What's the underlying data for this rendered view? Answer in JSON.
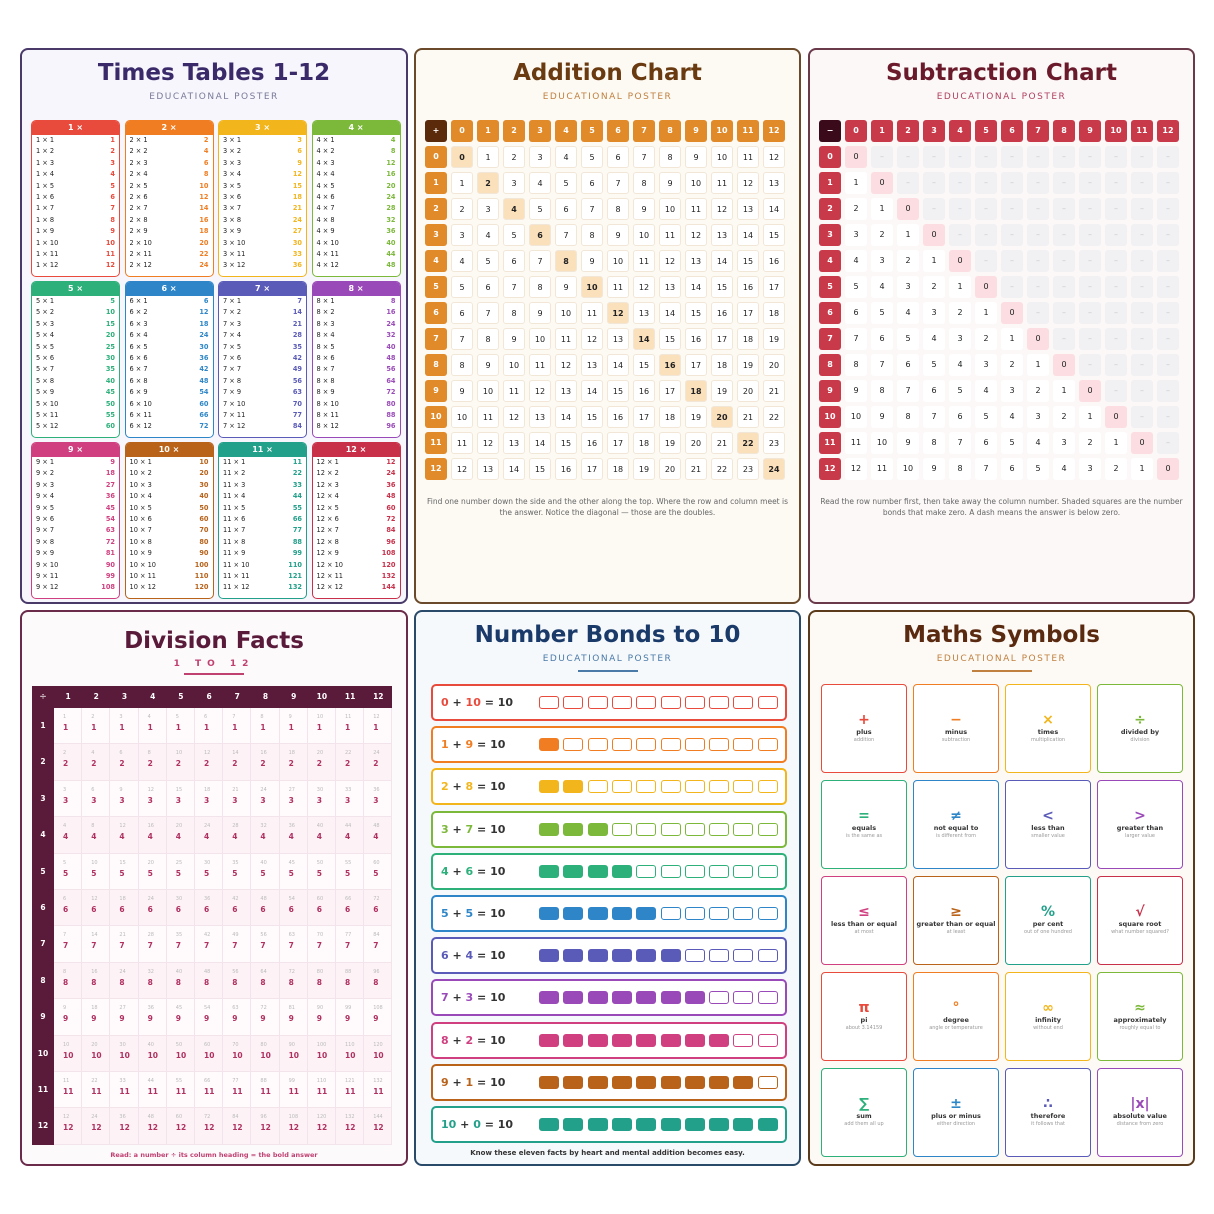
{
  "times": {
    "title": "Times Tables 1-12",
    "subtitle": "EDUCATIONAL POSTER",
    "colors": [
      "#e84a3c",
      "#f07d22",
      "#f2b51c",
      "#7cb83a",
      "#2db07a",
      "#2e86c8",
      "#5a5ab8",
      "#9a4ab8",
      "#d04080",
      "#b8621a",
      "#22a08a",
      "#c8304a"
    ]
  },
  "addition": {
    "title": "Addition Chart",
    "subtitle": "EDUCATIONAL POSTER",
    "corner": "+",
    "footer": "Find one number down the side and the other along the top. Where the row and column meet is the answer. Notice the diagonal — those are the doubles."
  },
  "subtraction": {
    "title": "Subtraction Chart",
    "subtitle": "EDUCATIONAL POSTER",
    "corner": "−",
    "dash": "–",
    "footer": "Read the row number first, then take away the column number. Shaded squares are the number bonds that make zero. A dash means the answer is below zero."
  },
  "division": {
    "title": "Division Facts",
    "subtitle": "1 TO 12",
    "corner": "÷",
    "footer": "Read: a number ÷ its column heading = the bold answer"
  },
  "bonds": {
    "title": "Number Bonds to 10",
    "subtitle": "EDUCATIONAL POSTER",
    "footer": "Know these eleven facts by heart and mental addition becomes easy.",
    "rows": [
      {
        "a": "0",
        "b": "10",
        "sum": "10",
        "color": "#e84a3c"
      },
      {
        "a": "1",
        "b": "9",
        "sum": "10",
        "color": "#f07d22"
      },
      {
        "a": "2",
        "b": "8",
        "sum": "10",
        "color": "#f2b51c"
      },
      {
        "a": "3",
        "b": "7",
        "sum": "10",
        "color": "#7cb83a"
      },
      {
        "a": "4",
        "b": "6",
        "sum": "10",
        "color": "#2db07a"
      },
      {
        "a": "5",
        "b": "5",
        "sum": "10",
        "color": "#2e86c8"
      },
      {
        "a": "6",
        "b": "4",
        "sum": "10",
        "color": "#5a5ab8"
      },
      {
        "a": "7",
        "b": "3",
        "sum": "10",
        "color": "#9a4ab8"
      },
      {
        "a": "8",
        "b": "2",
        "sum": "10",
        "color": "#d04080"
      },
      {
        "a": "9",
        "b": "1",
        "sum": "10",
        "color": "#b8621a"
      },
      {
        "a": "10",
        "b": "0",
        "sum": "10",
        "color": "#22a08a"
      }
    ]
  },
  "symbols": {
    "title": "Maths Symbols",
    "subtitle": "EDUCATIONAL POSTER",
    "cards": [
      {
        "sym": "+",
        "name": "plus",
        "desc": "addition",
        "color": "#e84a3c"
      },
      {
        "sym": "−",
        "name": "minus",
        "desc": "subtraction",
        "color": "#f07d22"
      },
      {
        "sym": "×",
        "name": "times",
        "desc": "multiplication",
        "color": "#f2b51c"
      },
      {
        "sym": "÷",
        "name": "divided by",
        "desc": "division",
        "color": "#7cb83a"
      },
      {
        "sym": "=",
        "name": "equals",
        "desc": "is the same as",
        "color": "#2db07a"
      },
      {
        "sym": "≠",
        "name": "not equal to",
        "desc": "is different from",
        "color": "#2e86c8"
      },
      {
        "sym": "<",
        "name": "less than",
        "desc": "smaller value",
        "color": "#5a5ab8"
      },
      {
        "sym": ">",
        "name": "greater than",
        "desc": "larger value",
        "color": "#9a4ab8"
      },
      {
        "sym": "≤",
        "name": "less than or equal",
        "desc": "at most",
        "color": "#d04080"
      },
      {
        "sym": "≥",
        "name": "greater than or equal",
        "desc": "at least",
        "color": "#b8621a"
      },
      {
        "sym": "%",
        "name": "per cent",
        "desc": "out of one hundred",
        "color": "#22a08a"
      },
      {
        "sym": "√",
        "name": "square root",
        "desc": "what number squared?",
        "color": "#c8304a"
      },
      {
        "sym": "π",
        "name": "pi",
        "desc": "about 3.14159",
        "color": "#e84a3c"
      },
      {
        "sym": "°",
        "name": "degree",
        "desc": "angle or temperature",
        "color": "#f07d22"
      },
      {
        "sym": "∞",
        "name": "infinity",
        "desc": "without end",
        "color": "#f2b51c"
      },
      {
        "sym": "≈",
        "name": "approximately",
        "desc": "roughly equal to",
        "color": "#7cb83a"
      },
      {
        "sym": "∑",
        "name": "sum",
        "desc": "add them all up",
        "color": "#2db07a"
      },
      {
        "sym": "±",
        "name": "plus or minus",
        "desc": "either direction",
        "color": "#2e86c8"
      },
      {
        "sym": "∴",
        "name": "therefore",
        "desc": "it follows that",
        "color": "#5a5ab8"
      },
      {
        "sym": "|x|",
        "name": "absolute value",
        "desc": "distance from zero",
        "color": "#9a4ab8"
      }
    ]
  }
}
